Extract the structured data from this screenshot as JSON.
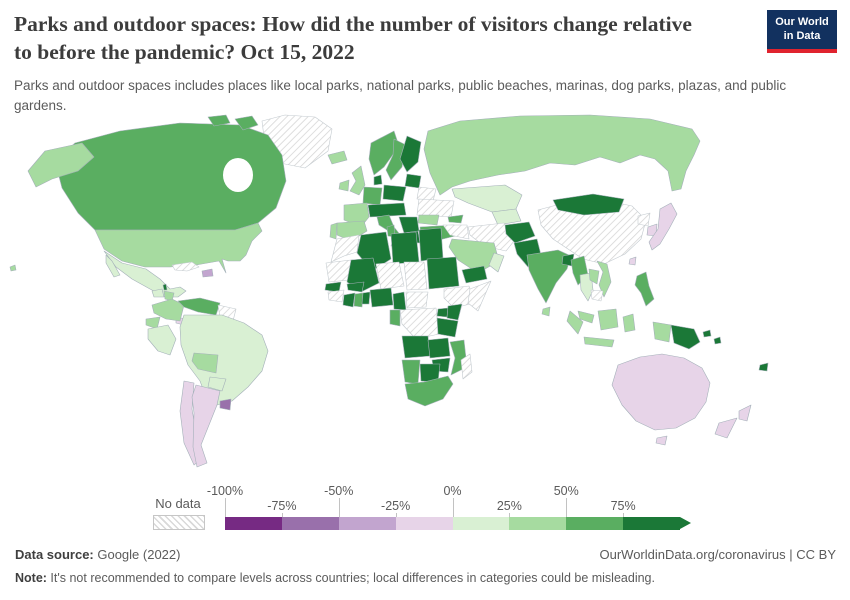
{
  "header": {
    "title": "Parks and outdoor spaces: How did the number of visitors change relative to before the pandemic? Oct 15, 2022",
    "subtitle": "Parks and outdoor spaces includes places like local parks, national parks, public beaches, marinas, dog parks, plazas, and public gardens.",
    "logo": {
      "line1": "Our World",
      "line2": "in Data",
      "bg_color": "#12315f",
      "accent_color": "#e0232e"
    }
  },
  "footer": {
    "source_label": "Data source:",
    "source_value": " Google (2022)",
    "attribution": "OurWorldinData.org/coronavirus | CC BY",
    "note_label": "Note:",
    "note_value": " It's not recommended to compare levels across countries; local differences in categories could be misleading."
  },
  "chart_data": {
    "type": "choropleth",
    "title": "Parks and outdoor spaces: How did the number of visitors change relative to before the pandemic?",
    "date": "Oct 15, 2022",
    "unit": "% change in visitors relative to pre-pandemic baseline",
    "legend": {
      "no_data_label": "No data",
      "tick_labels": [
        "-100%",
        "-75%",
        "-50%",
        "-25%",
        "0%",
        "25%",
        "50%",
        "75%"
      ],
      "bucket_labels": [
        "-100% to -75%",
        "-75% to -50%",
        "-50% to -25%",
        "-25% to 0%",
        "0% to 25%",
        "25% to 50%",
        "50% to 75%",
        "75% and above"
      ],
      "colors": [
        "#762a83",
        "#9970ab",
        "#c2a5cf",
        "#e7d4e8",
        "#d9f0d3",
        "#a6dba0",
        "#5aae61",
        "#1b7837"
      ]
    },
    "countries": {
      "Greenland": "no_data",
      "Canada": 6,
      "United States": 5,
      "Mexico": 4,
      "Belize": 7,
      "Guatemala": 4,
      "Honduras": 5,
      "Nicaragua": 5,
      "Costa Rica": 3,
      "Panama": 3,
      "Cuba": "no_data",
      "Dominican Republic": 2,
      "Colombia": 5,
      "Venezuela": 6,
      "Guyana": "no_data",
      "Ecuador": 5,
      "Peru": 4,
      "Brazil": 4,
      "Bolivia": 5,
      "Paraguay": 4,
      "Chile": 3,
      "Argentina": 3,
      "Uruguay": 1,
      "Iceland": 5,
      "Ireland": 5,
      "United Kingdom": 5,
      "Portugal": 5,
      "Spain": 5,
      "France": 5,
      "Germany": 6,
      "Denmark": 7,
      "Norway": 6,
      "Sweden": 6,
      "Finland": 7,
      "Baltic states": 7,
      "Poland": 7,
      "Belarus": "no_data",
      "Ukraine": "no_data",
      "Central Europe": 7,
      "Romania": 5,
      "Balkans": 7,
      "Greece": 7,
      "Italy": 6,
      "Turkey": 6,
      "Russia": 5,
      "Kazakhstan": 4,
      "Central Asia": 4,
      "Caucasus": 6,
      "Iran": "no_data",
      "Iraq and Syria": "no_data",
      "Saudi Arabia": 5,
      "Yemen": 7,
      "Oman": 4,
      "Morocco": "no_data",
      "Algeria": 7,
      "Tunisia": 6,
      "Libya": 7,
      "Egypt": 7,
      "Mauritania": "no_data",
      "Mali": 7,
      "Burkina Faso": 7,
      "Niger": "no_data",
      "Chad": "no_data",
      "Sudan": 7,
      "Ethiopia": "no_data",
      "Somalia": "no_data",
      "Senegal": 7,
      "Guinea": "no_data",
      "Cote d'Ivoire": 7,
      "Ghana": 6,
      "Benin and Togo": 7,
      "Nigeria": 7,
      "Cameroon": 7,
      "Central African Republic": "no_data",
      "Democratic Republic of Congo": "no_data",
      "Congo": 6,
      "Uganda": 7,
      "Kenya": 7,
      "Tanzania": 7,
      "Angola": 7,
      "Zambia": 7,
      "Mozambique": 6,
      "Zimbabwe": 7,
      "Botswana": 7,
      "Namibia": 6,
      "South Africa": 6,
      "Madagascar": "no_data",
      "Afghanistan": 7,
      "Pakistan": 7,
      "India": 6,
      "Bangladesh": 7,
      "Sri Lanka": 5,
      "China": "no_data",
      "Mongolia": 7,
      "Myanmar": 6,
      "Thailand": 4,
      "Laos": 5,
      "Vietnam": 5,
      "Cambodia": "no_data",
      "North Korea": "no_data",
      "South Korea": 3,
      "Japan": 3,
      "Taiwan": 3,
      "Philippines": 6,
      "Malaysia": 5,
      "Indonesia": 5,
      "Papua New Guinea": 7,
      "Solomon Islands": 7,
      "Fiji": 7,
      "Australia": 3,
      "New Zealand": 3
    }
  }
}
